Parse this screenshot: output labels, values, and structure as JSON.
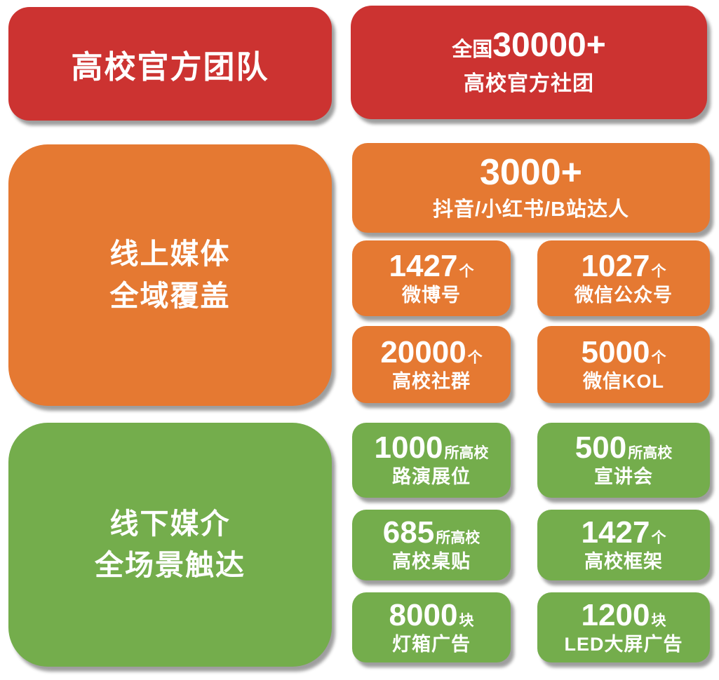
{
  "colors": {
    "red": "#cc3331",
    "orange": "#e57932",
    "green": "#74ad4c",
    "text": "#ffffff",
    "background": "#ffffff"
  },
  "header": {
    "left": {
      "title": "高校官方团队"
    },
    "right": {
      "prefix": "全国",
      "number": "30000+",
      "label": "高校官方社团"
    }
  },
  "online": {
    "left": {
      "line1": "线上媒体",
      "line2": "全域覆盖"
    },
    "feature": {
      "number": "3000+",
      "label": "抖音/小红书/B站达人"
    },
    "stats": [
      {
        "number": "1427",
        "unit": "个",
        "label": "微博号"
      },
      {
        "number": "1027",
        "unit": "个",
        "label": "微信公众号"
      },
      {
        "number": "20000",
        "unit": "个",
        "label": "高校社群"
      },
      {
        "number": "5000",
        "unit": "个",
        "label": "微信KOL"
      }
    ]
  },
  "offline": {
    "left": {
      "line1": "线下媒介",
      "line2": "全场景触达"
    },
    "stats": [
      {
        "number": "1000",
        "unit": "所高校",
        "label": "路演展位"
      },
      {
        "number": "500",
        "unit": "所高校",
        "label": "宣讲会"
      },
      {
        "number": "685",
        "unit": "所高校",
        "label": "高校桌贴"
      },
      {
        "number": "1427",
        "unit": "个",
        "label": "高校框架"
      },
      {
        "number": "8000",
        "unit": "块",
        "label": "灯箱广告"
      },
      {
        "number": "1200",
        "unit": "块",
        "label": "LED大屏广告"
      }
    ]
  }
}
